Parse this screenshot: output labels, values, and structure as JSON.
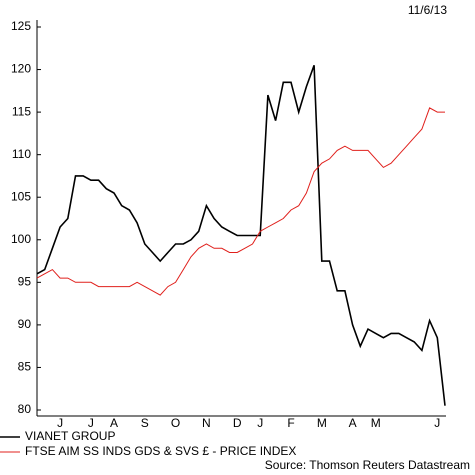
{
  "chart_data": {
    "type": "line",
    "date": "11/6/13",
    "source": "Source: Thomson Reuters Datastream",
    "categories": [
      null,
      null,
      null,
      "J",
      null,
      null,
      null,
      "J",
      null,
      null,
      "A",
      null,
      null,
      null,
      "S",
      null,
      null,
      null,
      "O",
      null,
      null,
      null,
      "N",
      null,
      null,
      null,
      "D",
      null,
      null,
      "J",
      null,
      null,
      null,
      "F",
      null,
      null,
      null,
      "M",
      null,
      null,
      null,
      "A",
      null,
      null,
      "M",
      null,
      null,
      null,
      null,
      null,
      null,
      null,
      "J",
      null
    ],
    "series": [
      {
        "name": "VIANET GROUP",
        "color": "#000000",
        "values": [
          96,
          96.5,
          99,
          101.5,
          102.5,
          107.5,
          107.5,
          107,
          107,
          106,
          105.5,
          104,
          103.5,
          102,
          99.5,
          98.5,
          97.5,
          98.5,
          99.5,
          99.5,
          100,
          101,
          104,
          102.5,
          101.5,
          101,
          100.5,
          100.5,
          100.5,
          100.5,
          117,
          114,
          118.5,
          118.5,
          115,
          118,
          120.5,
          97.5,
          97.5,
          94,
          94,
          90,
          87.5,
          89.5,
          89,
          88.5,
          89,
          89,
          88.5,
          88,
          87,
          90.5,
          88.5,
          80.5
        ]
      },
      {
        "name": "FTSE AIM SS INDS GDS & SVS £ - PRICE INDEX",
        "color": "#e0201c",
        "values": [
          95.5,
          96,
          96.5,
          95.5,
          95.5,
          95,
          95,
          95,
          94.5,
          94.5,
          94.5,
          94.5,
          94.5,
          95,
          94.5,
          94,
          93.5,
          94.5,
          95,
          96.5,
          98,
          99,
          99.5,
          99,
          99,
          98.5,
          98.5,
          99,
          99.5,
          101,
          101.5,
          102,
          102.5,
          103.5,
          104,
          105.5,
          108,
          109,
          109.5,
          110.5,
          111,
          110.5,
          110.5,
          110.5,
          109.5,
          108.5,
          109,
          110,
          111,
          112,
          113,
          115.5,
          115,
          115
        ]
      }
    ],
    "ylim": [
      80,
      125
    ],
    "yticks": [
      80,
      85,
      90,
      95,
      100,
      105,
      110,
      115,
      120,
      125
    ]
  }
}
